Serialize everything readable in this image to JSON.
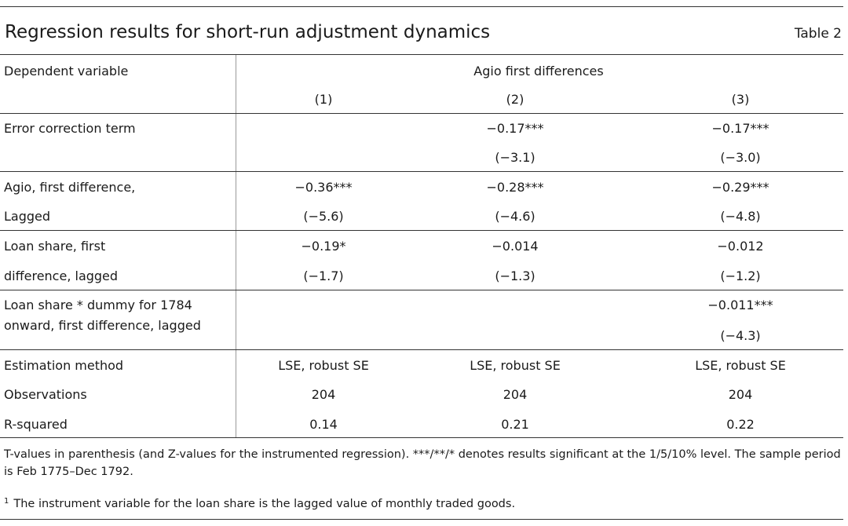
{
  "table": {
    "title": "Regression results for short-run adjustment dynamics",
    "number": "Table 2",
    "dependent_label": "Dependent variable",
    "dependent_value": "Agio first differences",
    "columns": [
      "(1)",
      "(2)",
      "(3)"
    ],
    "rows": [
      {
        "label_lines": [
          "Error correction term"
        ],
        "coef": [
          "",
          "−0.17***",
          "−0.17***"
        ],
        "tstat": [
          "",
          "(−3.1)",
          "(−3.0)"
        ]
      },
      {
        "label_lines": [
          "Agio, first difference,",
          "Lagged"
        ],
        "coef": [
          "−0.36***",
          "−0.28***",
          "−0.29***"
        ],
        "tstat": [
          "(−5.6)",
          "(−4.6)",
          "(−4.8)"
        ]
      },
      {
        "label_lines": [
          "Loan share, first",
          "difference, lagged"
        ],
        "coef": [
          "−0.19*",
          "−0.014",
          "−0.012"
        ],
        "tstat": [
          "(−1.7)",
          "(−1.3)",
          "(−1.2)"
        ]
      },
      {
        "label_lines": [
          "Loan share * dummy for 1784",
          "onward, first difference, lagged"
        ],
        "coef": [
          "",
          "",
          "−0.011***"
        ],
        "tstat": [
          "",
          "",
          "(−4.3)"
        ]
      }
    ],
    "footer_rows": [
      {
        "label": "Estimation method",
        "values": [
          "LSE, robust SE",
          "LSE, robust SE",
          "LSE, robust SE"
        ]
      },
      {
        "label": "Observations",
        "values": [
          "204",
          "204",
          "204"
        ]
      },
      {
        "label": "R-squared",
        "values": [
          "0.14",
          "0.21",
          "0.22"
        ]
      }
    ],
    "note": "T-values in parenthesis (and Z-values for the instrumented regression). ***/**/* denotes results significant at the 1/5/10% level. The sample period is Feb 1775–Dec 1792.",
    "footnote_marker": "1",
    "footnote": "The instrument variable for the loan share is the lagged value of monthly traded goods."
  }
}
